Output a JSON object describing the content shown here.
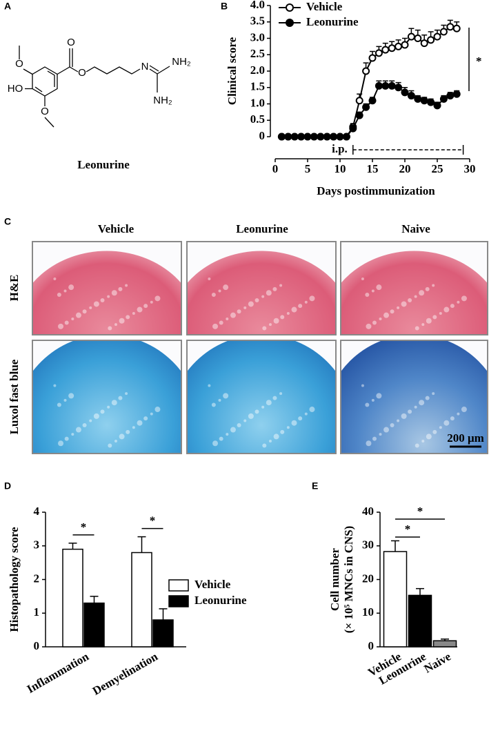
{
  "panel_labels": [
    "A",
    "B",
    "C",
    "D",
    "E"
  ],
  "structure": {
    "name": "Leonurine",
    "atoms": [
      "O",
      "HO",
      "O",
      "O",
      "O",
      "N",
      "NH₂",
      "NH₂"
    ]
  },
  "histology": {
    "columns": [
      "Vehicle",
      "Leonurine",
      "Naive"
    ],
    "rows": [
      "H&E",
      "Luxol fast blue"
    ],
    "scale_bar": "200 μm"
  },
  "chart_data": [
    {
      "type": "line",
      "ylabel": "Clinical score",
      "xlabel": "Days postimmunization",
      "x": [
        1,
        2,
        3,
        4,
        5,
        6,
        7,
        8,
        9,
        10,
        11,
        12,
        13,
        14,
        15,
        16,
        17,
        18,
        19,
        20,
        21,
        22,
        23,
        24,
        25,
        26,
        27,
        28
      ],
      "series": [
        {
          "name": "Vehicle",
          "color": "#000000",
          "marker": "open",
          "values": [
            0,
            0,
            0,
            0,
            0,
            0,
            0,
            0,
            0,
            0,
            0,
            0.3,
            1.1,
            2.0,
            2.4,
            2.55,
            2.65,
            2.7,
            2.75,
            2.8,
            3.05,
            3.0,
            2.85,
            2.95,
            3.05,
            3.2,
            3.35,
            3.3
          ],
          "errors": [
            0,
            0,
            0,
            0,
            0,
            0,
            0,
            0,
            0,
            0,
            0,
            0.1,
            0.2,
            0.25,
            0.2,
            0.2,
            0.2,
            0.2,
            0.2,
            0.2,
            0.25,
            0.25,
            0.25,
            0.25,
            0.2,
            0.2,
            0.2,
            0.2
          ]
        },
        {
          "name": "Leonurine",
          "color": "#000000",
          "marker": "filled",
          "values": [
            0,
            0,
            0,
            0,
            0,
            0,
            0,
            0,
            0,
            0,
            0,
            0.25,
            0.65,
            0.9,
            1.1,
            1.55,
            1.55,
            1.55,
            1.5,
            1.35,
            1.25,
            1.15,
            1.1,
            1.05,
            0.95,
            1.15,
            1.25,
            1.3
          ],
          "errors": [
            0,
            0,
            0,
            0,
            0,
            0,
            0,
            0,
            0,
            0,
            0,
            0.1,
            0.1,
            0.1,
            0.1,
            0.15,
            0.15,
            0.15,
            0.15,
            0.15,
            0.15,
            0.1,
            0.1,
            0.1,
            0.1,
            0.1,
            0.1,
            0.1
          ]
        }
      ],
      "xlim": [
        0,
        30
      ],
      "xticks": [
        0,
        5,
        10,
        15,
        20,
        25,
        30
      ],
      "ylim": [
        0,
        4
      ],
      "yticks": [
        0,
        0.5,
        {
          "value": 1,
          "label": "1.0"
        },
        1.5,
        {
          "value": 2,
          "label": "2.0"
        },
        2.5,
        {
          "value": 3,
          "label": "3.0"
        },
        3.5,
        {
          "value": 4,
          "label": "4.0"
        }
      ],
      "treatment_label": "i.p.",
      "treatment_range": [
        12,
        29
      ],
      "significance_marks": [
        "*"
      ]
    },
    {
      "type": "bar",
      "ylabel": "Histopathology score",
      "categories": [
        "Inflammation",
        "Demyelination"
      ],
      "series": [
        {
          "name": "Vehicle",
          "color": "#ffffff",
          "values": [
            2.9,
            2.8
          ],
          "errors": [
            0.18,
            0.47
          ]
        },
        {
          "name": "Leonurine",
          "color": "#000000",
          "values": [
            1.3,
            0.8
          ],
          "errors": [
            0.2,
            0.33
          ]
        }
      ],
      "ylim": [
        0,
        4
      ],
      "yticks": [
        0,
        1,
        2,
        3,
        4
      ],
      "significance_marks": [
        "*",
        "*"
      ]
    },
    {
      "type": "bar",
      "ylabel": [
        "Cell number",
        "(× 10⁵ MNCs in CNS)"
      ],
      "categories": [
        "Vehicle",
        "Leonurine",
        "Naive"
      ],
      "values": [
        28.3,
        15.3,
        1.8
      ],
      "errors": [
        3.2,
        2.0,
        0.5
      ],
      "colors": [
        "#ffffff",
        "#000000",
        "#888888"
      ],
      "ylim": [
        0,
        40
      ],
      "yticks": [
        0,
        10,
        20,
        30,
        40
      ],
      "significance_marks": [
        "*",
        "*"
      ]
    }
  ]
}
